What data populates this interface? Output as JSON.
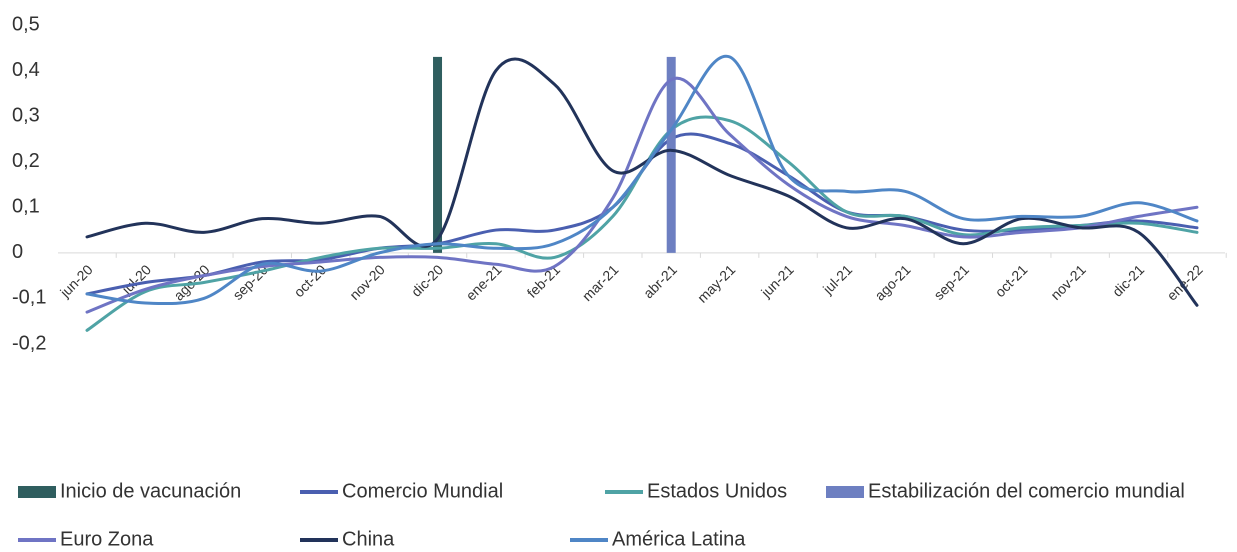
{
  "chart_data": {
    "type": "line",
    "categories": [
      "jun-20",
      "jul-20",
      "ago-20",
      "sep-20",
      "oct-20",
      "nov-20",
      "dic-20",
      "ene-21",
      "feb-21",
      "mar-21",
      "abr-21",
      "may-21",
      "jun-21",
      "jul-21",
      "ago-21",
      "sep-21",
      "oct-21",
      "nov-21",
      "dic-21",
      "ene-22"
    ],
    "ylim": [
      -0.2,
      0.5
    ],
    "yticks": [
      {
        "value": 0.5,
        "label": "0,5"
      },
      {
        "value": 0.4,
        "label": "0,4"
      },
      {
        "value": 0.3,
        "label": "0,3"
      },
      {
        "value": 0.2,
        "label": "0,2"
      },
      {
        "value": 0.1,
        "label": "0,1"
      },
      0,
      {
        "value": -0.1,
        "label": "-0,1"
      },
      {
        "value": -0.2,
        "label": "-0,2"
      }
    ],
    "series": [
      {
        "name": "Inicio de vacunación",
        "kind": "bar",
        "color": "#2f5e5f",
        "values": [
          null,
          null,
          null,
          null,
          null,
          null,
          0.43,
          null,
          null,
          null,
          null,
          null,
          null,
          null,
          null,
          null,
          null,
          null,
          null,
          null
        ]
      },
      {
        "name": "Comercio Mundial",
        "color": "#4a5fb0",
        "values": [
          -0.09,
          -0.065,
          -0.05,
          -0.02,
          -0.015,
          0.01,
          0.02,
          0.05,
          0.05,
          0.1,
          0.25,
          0.24,
          0.17,
          0.09,
          0.08,
          0.05,
          0.05,
          0.06,
          0.07,
          0.055
        ]
      },
      {
        "name": "Estados Unidos",
        "color": "#4fa3a5",
        "values": [
          -0.17,
          -0.085,
          -0.065,
          -0.04,
          -0.01,
          0.01,
          0.01,
          0.02,
          -0.01,
          0.08,
          0.27,
          0.29,
          0.2,
          0.09,
          0.08,
          0.04,
          0.055,
          0.06,
          0.065,
          0.045
        ]
      },
      {
        "name": "Estabilización del comercio mundial",
        "kind": "bar",
        "color": "#6d7fc1",
        "values": [
          null,
          null,
          null,
          null,
          null,
          null,
          null,
          null,
          null,
          null,
          0.43,
          null,
          null,
          null,
          null,
          null,
          null,
          null,
          null,
          null
        ]
      },
      {
        "name": "Euro Zona",
        "color": "#6f74c4",
        "values": [
          -0.13,
          -0.08,
          -0.05,
          -0.03,
          -0.02,
          -0.01,
          -0.01,
          -0.025,
          -0.03,
          0.12,
          0.38,
          0.26,
          0.15,
          0.08,
          0.06,
          0.035,
          0.045,
          0.055,
          0.08,
          0.1
        ]
      },
      {
        "name": "China",
        "color": "#22335a",
        "values": [
          0.035,
          0.065,
          0.045,
          0.075,
          0.065,
          0.08,
          0.03,
          0.4,
          0.37,
          0.18,
          0.225,
          0.17,
          0.125,
          0.055,
          0.075,
          0.02,
          0.075,
          0.055,
          0.045,
          -0.115
        ]
      },
      {
        "name": "América Latina",
        "color": "#4f86c6",
        "values": [
          -0.09,
          -0.11,
          -0.1,
          -0.025,
          -0.04,
          0.0,
          0.02,
          0.01,
          0.02,
          0.1,
          0.27,
          0.43,
          0.17,
          0.135,
          0.135,
          0.075,
          0.08,
          0.08,
          0.11,
          0.07
        ]
      }
    ]
  }
}
